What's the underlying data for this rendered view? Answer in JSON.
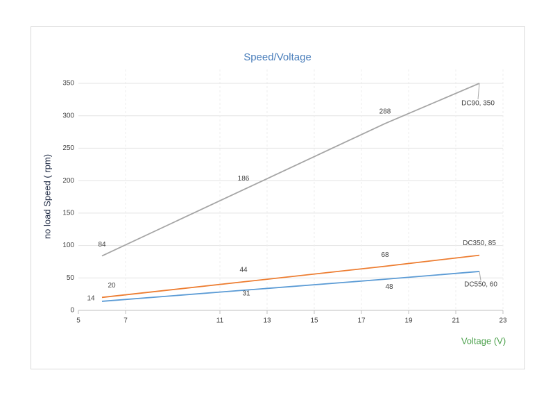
{
  "chart_data": {
    "type": "line",
    "title": "Speed/Voltage",
    "x_label": "Voltage (V)",
    "y_label": "no load Speed ( rpm)",
    "xlim": [
      5,
      23
    ],
    "xticks": [
      5,
      7,
      11,
      13,
      15,
      17,
      19,
      21,
      23
    ],
    "ylim": [
      0,
      350
    ],
    "yticks": [
      0,
      50,
      100,
      150,
      200,
      250,
      300,
      350
    ],
    "grid": true,
    "series": [
      {
        "color": "#a5a5a5",
        "x": [
          6,
          12,
          18,
          22
        ],
        "values": [
          84,
          186,
          288,
          350
        ],
        "value_labels": [
          "84",
          "186",
          "288",
          "DC90, 350"
        ]
      },
      {
        "color": "#ed7d31",
        "x": [
          6,
          12,
          18,
          22
        ],
        "values": [
          20,
          44,
          68,
          85
        ],
        "value_labels": [
          "20",
          "44",
          "68",
          "DC350, 85"
        ]
      },
      {
        "color": "#5b9bd5",
        "x": [
          6,
          12,
          18,
          22
        ],
        "values": [
          14,
          31,
          48,
          60
        ],
        "value_labels": [
          "14",
          "31",
          "48",
          "DC550, 60"
        ]
      }
    ]
  }
}
